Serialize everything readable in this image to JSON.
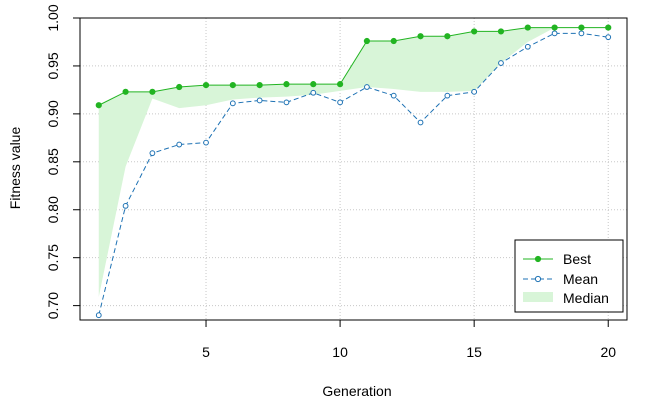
{
  "chart_data": {
    "type": "line",
    "title": "",
    "xlabel": "Generation",
    "ylabel": "Fitness value",
    "xlim": [
      0.3,
      20.7
    ],
    "ylim": [
      0.685,
      1.0
    ],
    "xticks": [
      5,
      10,
      15,
      20
    ],
    "yticks": [
      0.7,
      0.75,
      0.8,
      0.85,
      0.9,
      0.95,
      1.0
    ],
    "ytick_labels": [
      "0.70",
      "0.75",
      "0.80",
      "0.85",
      "0.90",
      "0.95",
      "1.00"
    ],
    "grid": true,
    "legend_position": "bottom-right",
    "x": [
      1,
      2,
      3,
      4,
      5,
      6,
      7,
      8,
      9,
      10,
      11,
      12,
      13,
      14,
      15,
      16,
      17,
      18,
      19,
      20
    ],
    "series": [
      {
        "name": "Best",
        "style": "solid line with filled circles",
        "color": "#22b422",
        "values": [
          0.909,
          0.923,
          0.923,
          0.928,
          0.93,
          0.93,
          0.93,
          0.931,
          0.931,
          0.931,
          0.976,
          0.976,
          0.981,
          0.981,
          0.986,
          0.986,
          0.99,
          0.99,
          0.99,
          0.99
        ]
      },
      {
        "name": "Mean",
        "style": "dashed line with open circles",
        "color": "#1e72b4",
        "values": [
          0.69,
          0.804,
          0.859,
          0.868,
          0.87,
          0.911,
          0.914,
          0.912,
          0.922,
          0.912,
          0.928,
          0.919,
          0.891,
          0.919,
          0.923,
          0.953,
          0.97,
          0.984,
          0.984,
          0.98
        ]
      },
      {
        "name": "Median",
        "style": "shaded band between Best and Median",
        "color": "#d8f5d8",
        "values": [
          0.709,
          0.845,
          0.916,
          0.906,
          0.909,
          0.915,
          0.917,
          0.918,
          0.92,
          0.924,
          0.928,
          0.926,
          0.923,
          0.923,
          0.924,
          0.953,
          0.975,
          0.99,
          0.99,
          0.99
        ]
      }
    ]
  }
}
